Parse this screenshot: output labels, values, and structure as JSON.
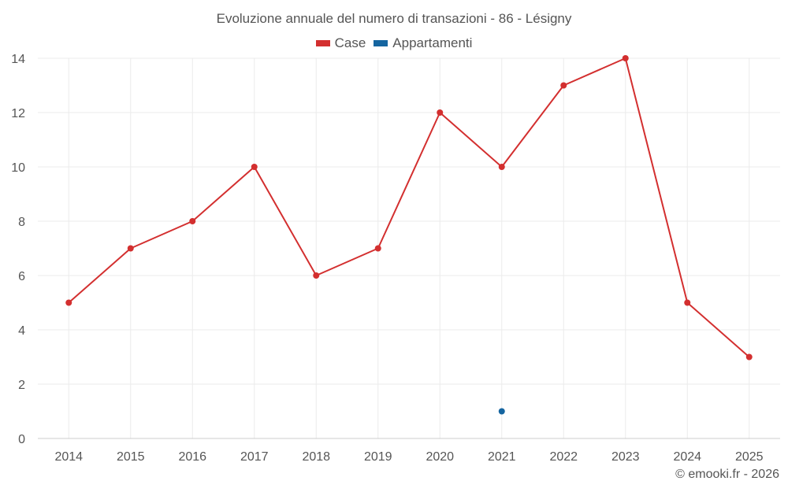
{
  "chart_data": {
    "type": "line",
    "title": "Evoluzione annuale del numero di transazioni - 86 - Lésigny",
    "xlabel": "",
    "ylabel": "",
    "categories": [
      "2014",
      "2015",
      "2016",
      "2017",
      "2018",
      "2019",
      "2020",
      "2021",
      "2022",
      "2023",
      "2024",
      "2025"
    ],
    "ylim": [
      0,
      14
    ],
    "yticks": [
      0,
      2,
      4,
      6,
      8,
      10,
      12,
      14
    ],
    "grid": true,
    "legend_position": "top-center",
    "series": [
      {
        "name": "Case",
        "color": "#d32f2f",
        "values": [
          5,
          7,
          8,
          10,
          6,
          7,
          12,
          10,
          13,
          14,
          5,
          3
        ]
      },
      {
        "name": "Appartamenti",
        "color": "#1565a0",
        "values": [
          null,
          null,
          null,
          null,
          null,
          null,
          null,
          1,
          null,
          null,
          null,
          null
        ]
      }
    ]
  },
  "credit": "© emooki.fr - 2026"
}
